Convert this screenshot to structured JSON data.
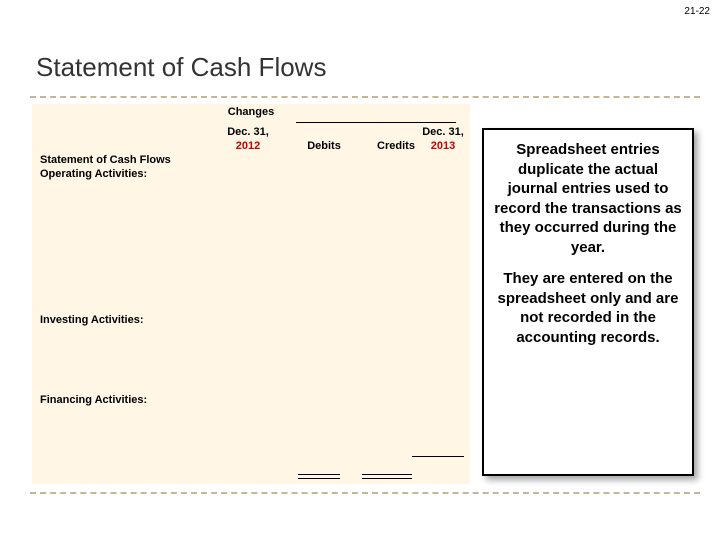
{
  "pagenum": "21-22",
  "title": "Statement of Cash Flows",
  "table": {
    "changes": "Changes",
    "dec1": "Dec. 31,",
    "y2012": "2012",
    "debits": "Debits",
    "credits": "Credits",
    "dec2": "Dec. 31,",
    "y2013": "2013",
    "stmt": "Statement of Cash Flows",
    "oper": "Operating Activities:",
    "invest": "Investing Activities:",
    "finance": "Financing Activities:"
  },
  "sidebox": {
    "p1": "Spreadsheet entries duplicate the actual journal entries used to record the transactions as they occurred during the year.",
    "p2": "They are entered on the spreadsheet only and are not recorded in the accounting records."
  },
  "colors": {
    "table_bg": "#fff6e5",
    "dash": "#c7b59b",
    "red": "#cc0000"
  }
}
